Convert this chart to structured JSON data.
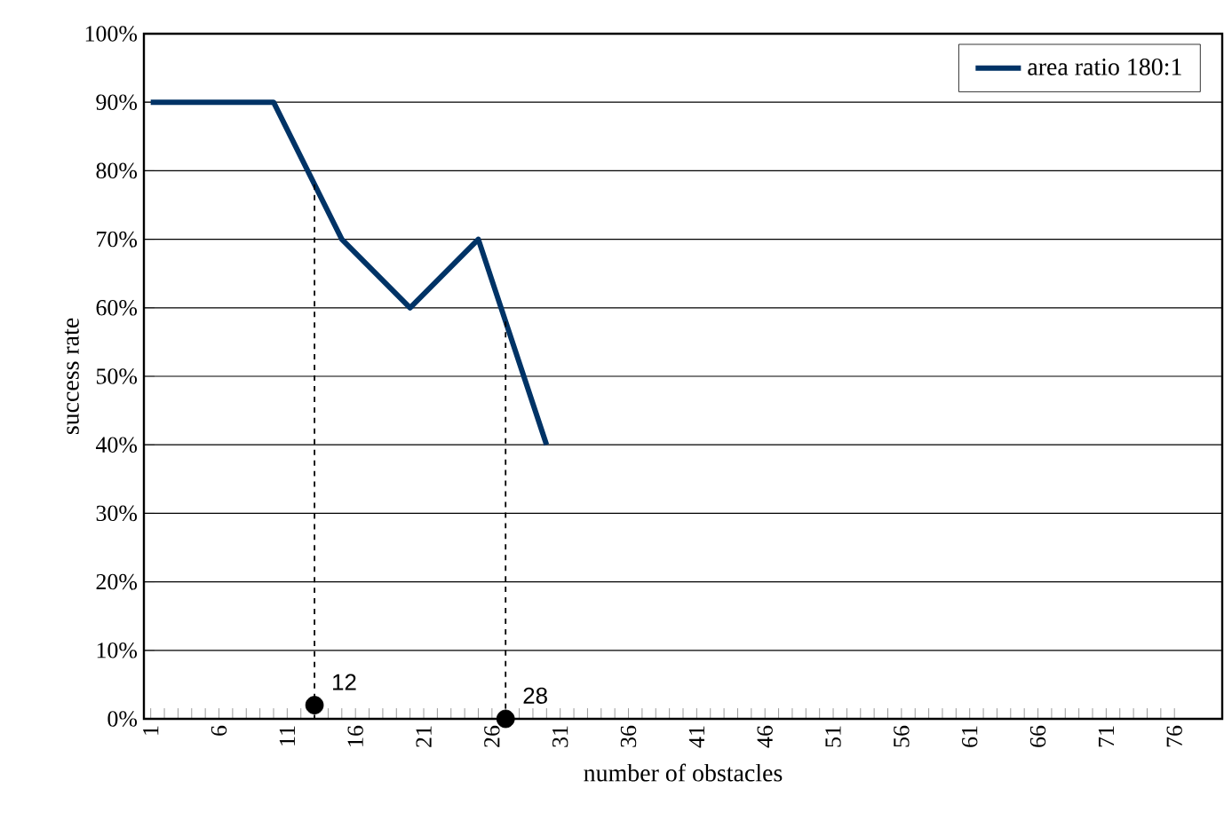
{
  "chart_data": {
    "type": "line",
    "xlabel": "number of obstacles",
    "ylabel": "success rate",
    "xlim": [
      0.5,
      79.5
    ],
    "xticks": [
      1,
      6,
      11,
      16,
      21,
      26,
      31,
      36,
      41,
      46,
      51,
      56,
      61,
      66,
      71,
      76
    ],
    "ylim": [
      0,
      100
    ],
    "yticks": [
      {
        "value": 0,
        "label": "0%"
      },
      {
        "value": 10,
        "label": "10%"
      },
      {
        "value": 20,
        "label": "20%"
      },
      {
        "value": 30,
        "label": "30%"
      },
      {
        "value": 40,
        "label": "40%"
      },
      {
        "value": 50,
        "label": "50%"
      },
      {
        "value": 60,
        "label": "60%"
      },
      {
        "value": 70,
        "label": "70%"
      },
      {
        "value": 80,
        "label": "80%"
      },
      {
        "value": 90,
        "label": "90%"
      },
      {
        "value": 100,
        "label": "100%"
      }
    ],
    "grid": "y",
    "legend": "top right",
    "series": [
      {
        "name": "area ratio 180:1",
        "color": "#003366",
        "x": [
          1,
          5,
          10,
          15,
          20,
          25,
          30
        ],
        "values": [
          90,
          90,
          90,
          70,
          60,
          70,
          40
        ]
      },
      {
        "type": "line",
        "color": "#000000",
        "line_style": "dashed",
        "x": [
          13,
          13
        ],
        "values": [
          78,
          0
        ]
      },
      {
        "type": "line",
        "color": "#000000",
        "line_style": "dashed",
        "x": [
          27,
          27
        ],
        "values": [
          58,
          0
        ]
      },
      {
        "type": "scatter",
        "color": "#000000",
        "marker": "circle",
        "x": [
          13,
          27
        ],
        "values": [
          2,
          0
        ]
      }
    ],
    "annotations": [
      {
        "text": "12",
        "x": 13,
        "y": 2
      },
      {
        "text": "28",
        "x": 27,
        "y": 0
      }
    ]
  }
}
